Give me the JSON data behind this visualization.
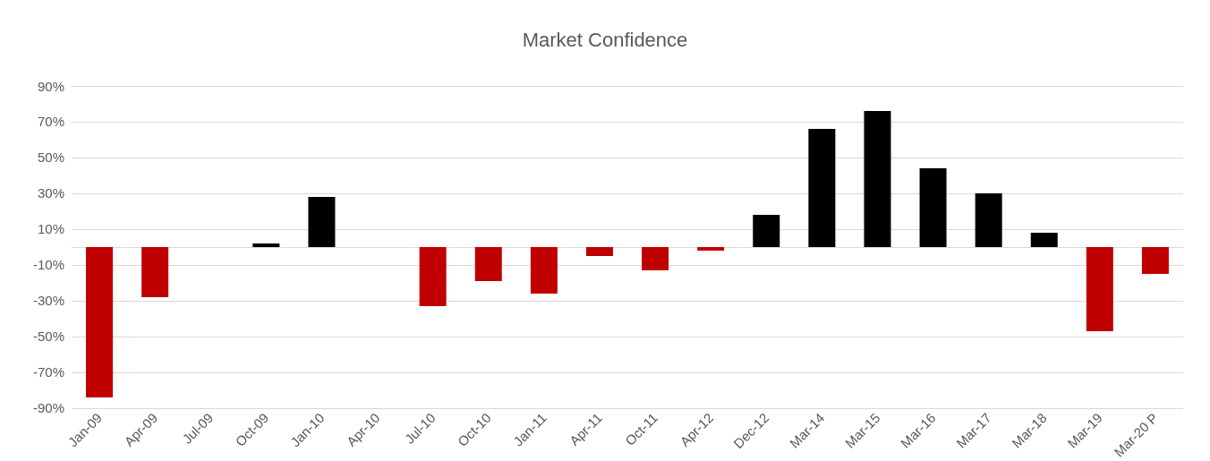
{
  "chart_data": {
    "type": "bar",
    "title": "Market Confidence",
    "categories": [
      "Jan-09",
      "Apr-09",
      "Jul-09",
      "Oct-09",
      "Jan-10",
      "Apr-10",
      "Jul-10",
      "Oct-10",
      "Jan-11",
      "Apr-11",
      "Oct-11",
      "Apr-12",
      "Dec-12",
      "Mar-14",
      "Mar-15",
      "Mar-16",
      "Mar-17",
      "Mar-18",
      "Mar-19",
      "Mar-20 P"
    ],
    "values": [
      -84,
      -28,
      0,
      2,
      28,
      0,
      -33,
      -19,
      -26,
      -5,
      -13,
      -2,
      18,
      66,
      76,
      44,
      30,
      8,
      -47,
      -15
    ],
    "colors": [
      "#c00000",
      "#c00000",
      "#000000",
      "#000000",
      "#000000",
      "#000000",
      "#c00000",
      "#c00000",
      "#c00000",
      "#c00000",
      "#c00000",
      "#c00000",
      "#000000",
      "#000000",
      "#000000",
      "#000000",
      "#000000",
      "#000000",
      "#c00000",
      "#c00000"
    ],
    "ylim": [
      -90,
      90
    ],
    "yticks": [
      {
        "value": -90,
        "label": "-90%"
      },
      {
        "value": -70,
        "label": "-70%"
      },
      {
        "value": -50,
        "label": "-50%"
      },
      {
        "value": -30,
        "label": "-30%"
      },
      {
        "value": -10,
        "label": "-10%"
      },
      {
        "value": 10,
        "label": "10%"
      },
      {
        "value": 30,
        "label": "30%"
      },
      {
        "value": 50,
        "label": "50%"
      },
      {
        "value": 70,
        "label": "70%"
      },
      {
        "value": 90,
        "label": "90%"
      }
    ],
    "grid": "y"
  }
}
